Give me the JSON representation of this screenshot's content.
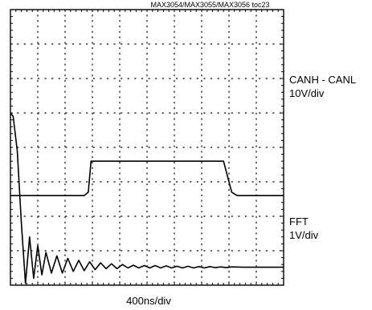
{
  "header": "MAX3054/MAX3055/MAX3056 toc23",
  "chart_data": {
    "type": "line",
    "title": "",
    "xlabel": "400ns/div",
    "grid": true,
    "divisions": {
      "x": 10,
      "y": 8
    },
    "x_units": "div",
    "y_units": "div",
    "series": [
      {
        "name": "CANH - CANL",
        "scale": "10V/div",
        "color": "#000000",
        "x": [
          0,
          2.7,
          2.85,
          2.95,
          7.8,
          8.1,
          8.3,
          10
        ],
        "y": [
          2.6,
          2.6,
          2.7,
          3.6,
          3.6,
          2.7,
          2.6,
          2.6
        ]
      },
      {
        "name": "FFT",
        "scale": "1V/div",
        "color": "#000000",
        "x": [
          0,
          0.1,
          0.25,
          0.4,
          0.55,
          0.7,
          0.85,
          1.0,
          1.15,
          1.3,
          1.5,
          1.7,
          1.9,
          2.1,
          2.3,
          2.5,
          2.7,
          2.9,
          3.1,
          3.3,
          3.5,
          3.7,
          3.9,
          4.1,
          4.3,
          4.5,
          4.7,
          4.9,
          5.1,
          5.3,
          5.5,
          5.7,
          5.9,
          6.1,
          6.3,
          6.5,
          6.7,
          6.9,
          7.1,
          7.3,
          7.5,
          7.7,
          7.9,
          8.1,
          8.5,
          9.0,
          9.5,
          10
        ],
        "y": [
          5.0,
          4.9,
          3.9,
          1.8,
          0.05,
          1.4,
          0.2,
          1.15,
          0.3,
          0.95,
          0.35,
          0.85,
          0.35,
          0.78,
          0.4,
          0.72,
          0.42,
          0.68,
          0.45,
          0.65,
          0.48,
          0.62,
          0.48,
          0.6,
          0.5,
          0.58,
          0.5,
          0.57,
          0.5,
          0.57,
          0.5,
          0.56,
          0.5,
          0.55,
          0.5,
          0.55,
          0.5,
          0.54,
          0.5,
          0.54,
          0.51,
          0.53,
          0.51,
          0.53,
          0.52,
          0.52,
          0.52,
          0.52
        ]
      }
    ]
  }
}
